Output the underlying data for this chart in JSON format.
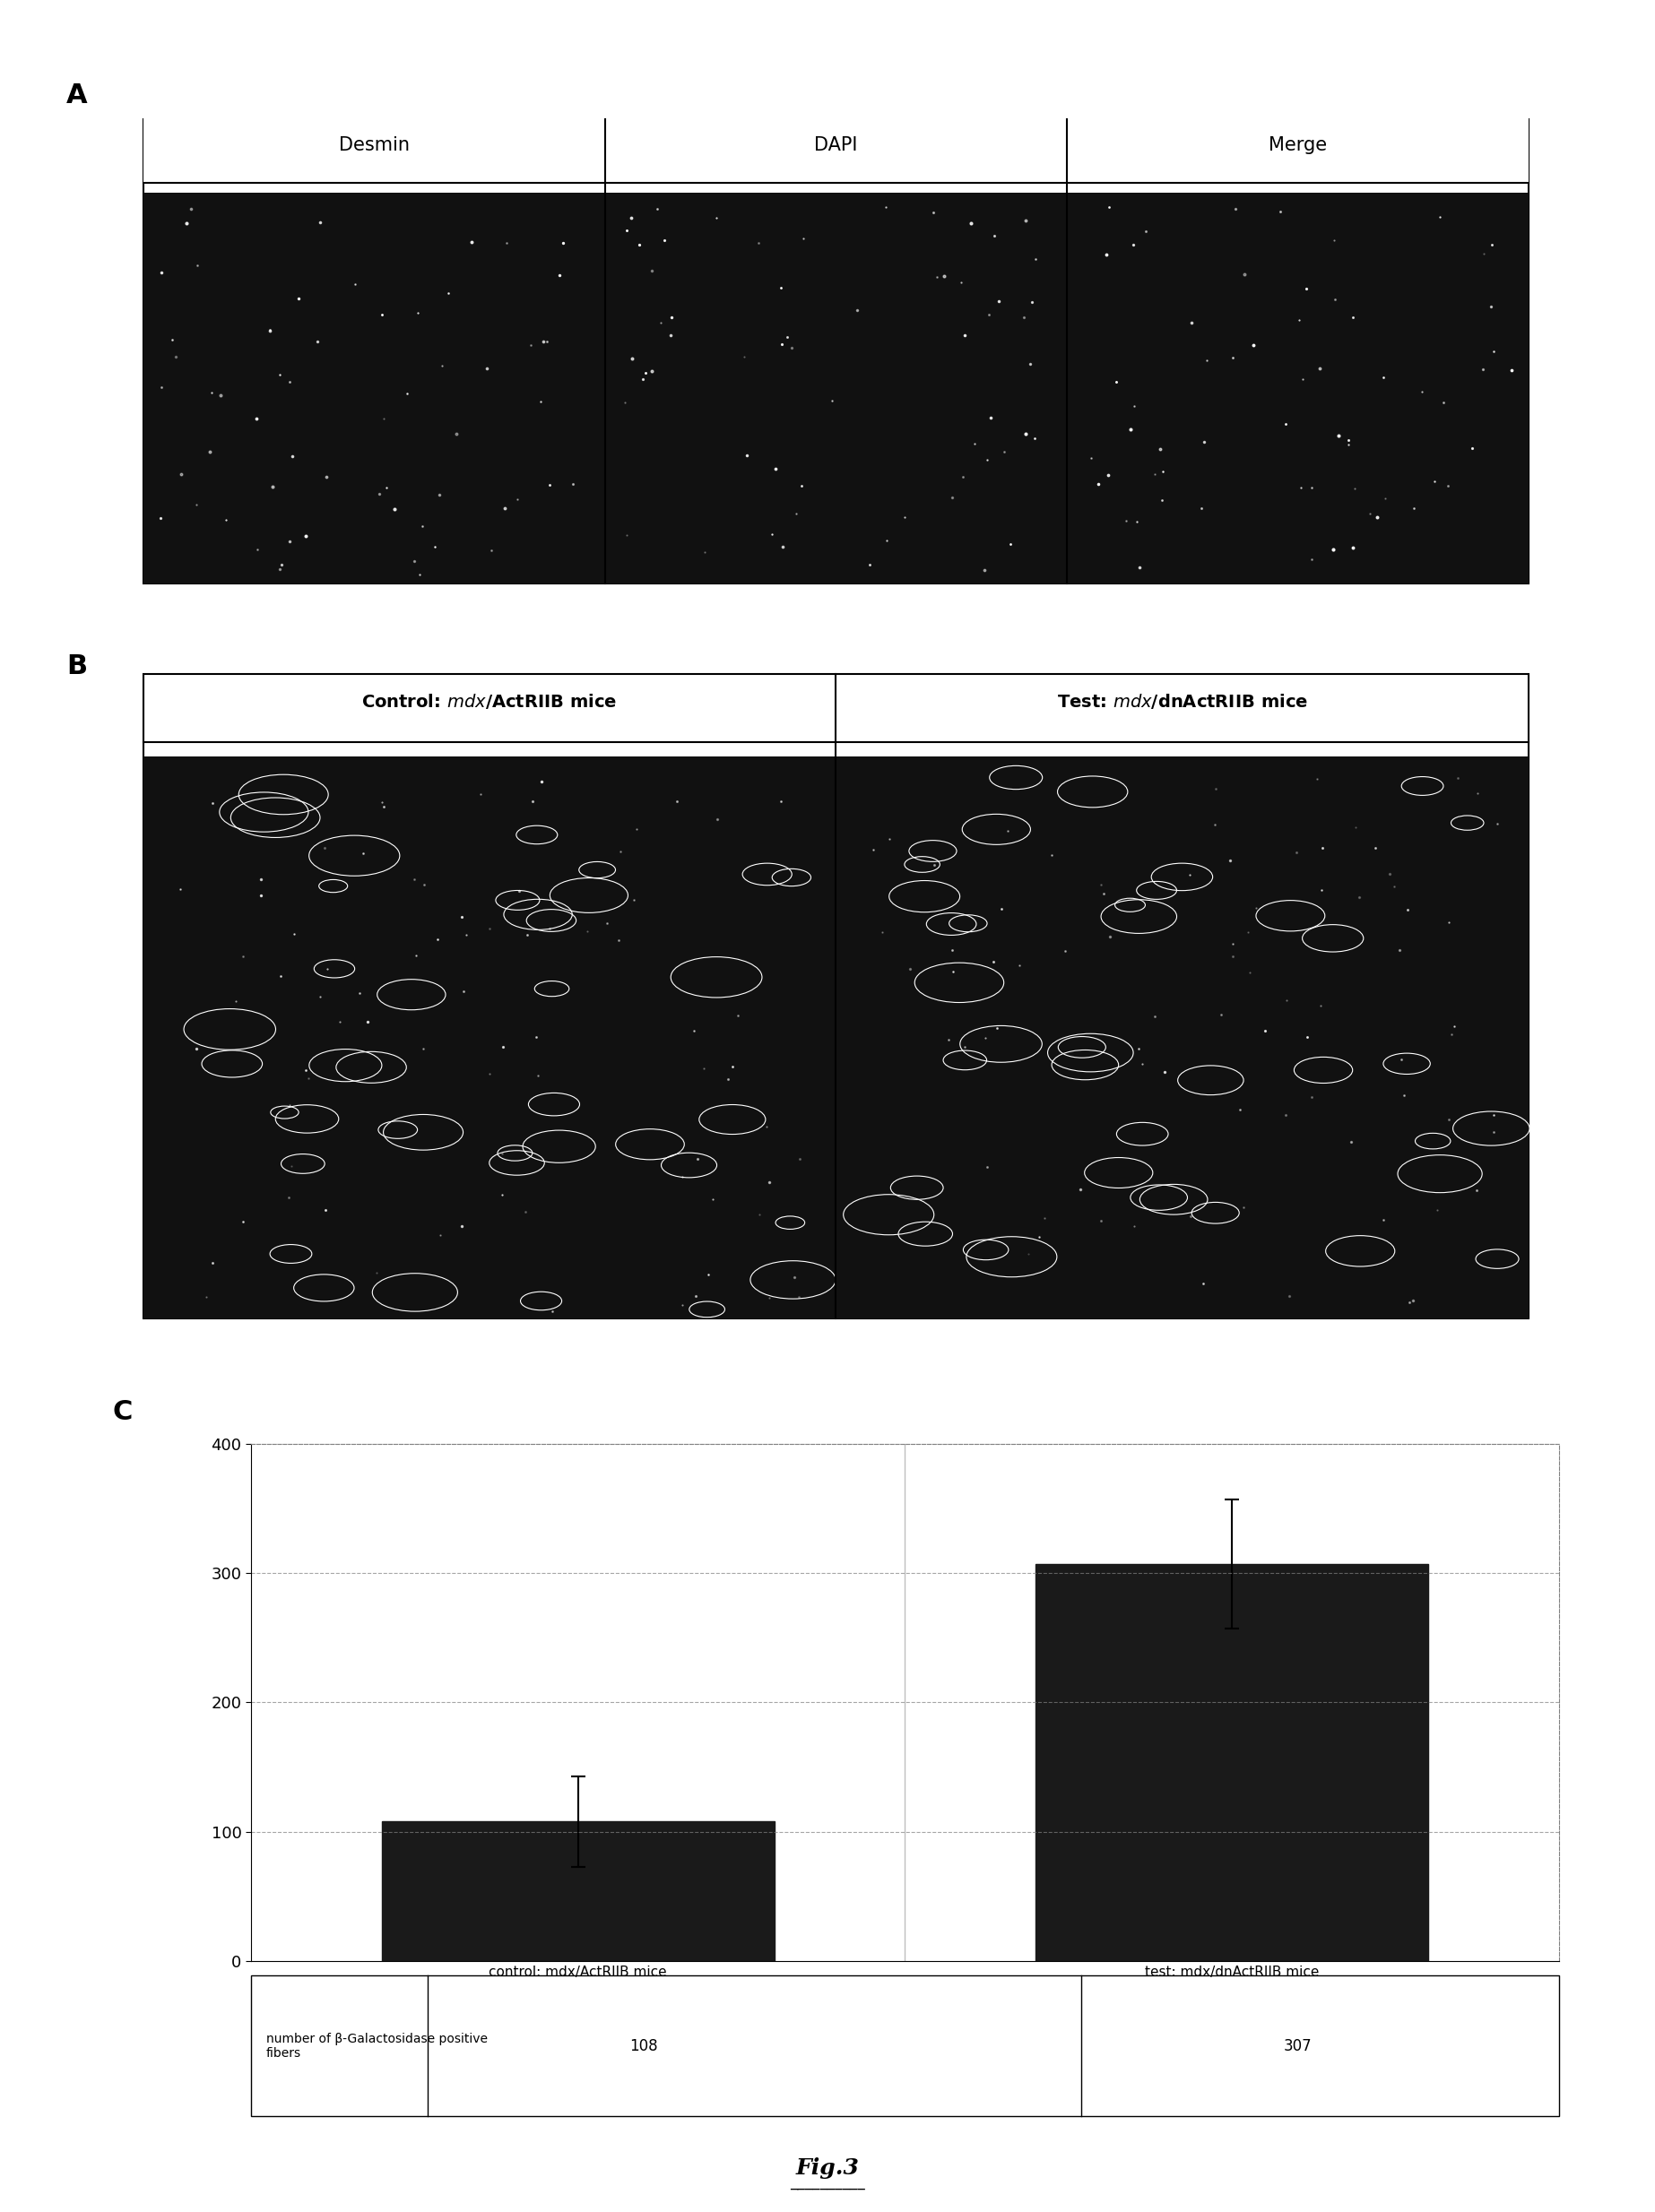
{
  "panel_A_label": "A",
  "panel_B_label": "B",
  "panel_C_label": "C",
  "panel_A_headers": [
    "Desmin",
    "DAPI",
    "Merge"
  ],
  "panel_B_headers": [
    "Control: mdx/ActRIIB mice",
    "Test: mdx/dnActRIIB mice"
  ],
  "bar_labels": [
    "control: mdx/ActRIIB mice",
    "test: mdx/dnActRIIB mice"
  ],
  "bar_values": [
    108,
    307
  ],
  "bar_errors": [
    35,
    50
  ],
  "bar_color": "#1a1a1a",
  "ylim": [
    0,
    400
  ],
  "yticks": [
    0,
    100,
    200,
    300,
    400
  ],
  "table_row_label": "number of β-Galactosidase positive\nfibers",
  "table_values": [
    "108",
    "307"
  ],
  "fig_label": "Fig.3",
  "background_color": "#ffffff",
  "image_bg": "#111111"
}
